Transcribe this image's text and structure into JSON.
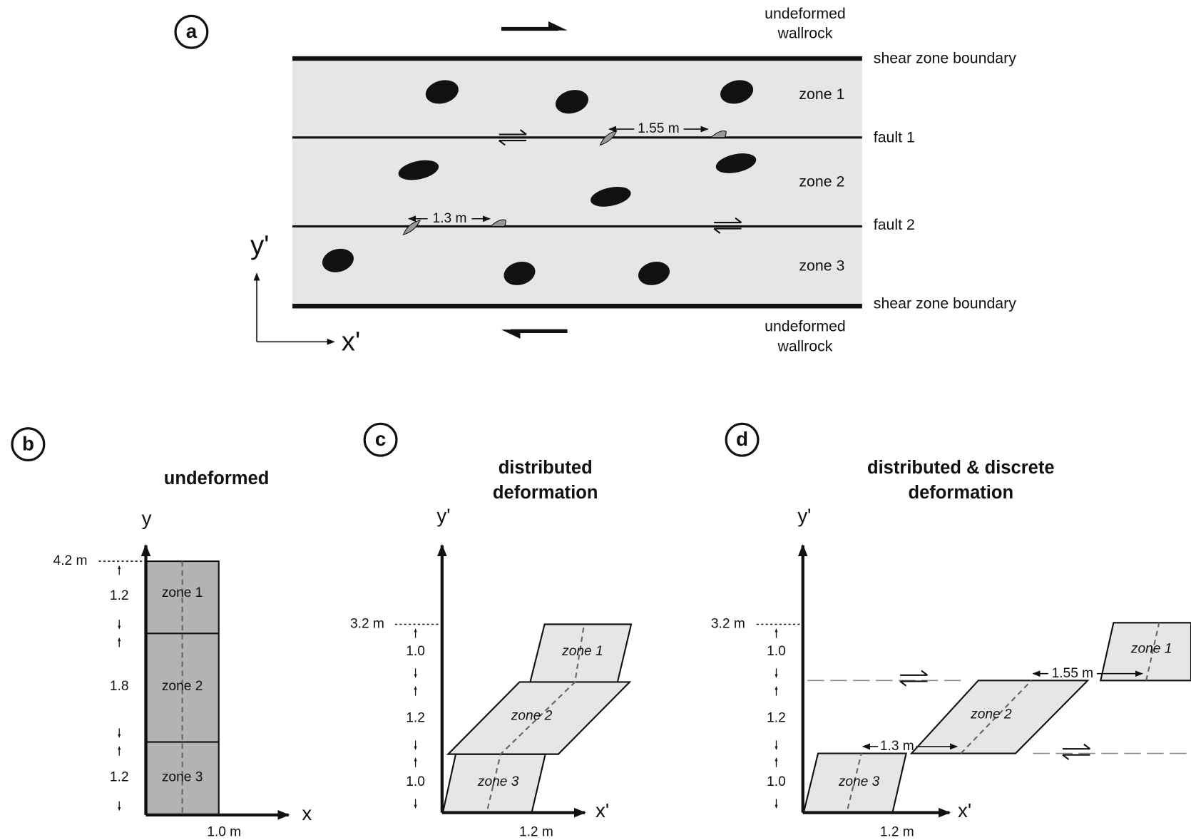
{
  "panel_a": {
    "label": "a",
    "wallrock_top": [
      "undeformed",
      "wallrock"
    ],
    "boundary_top": "shear zone boundary",
    "zones": [
      "zone 1",
      "zone 2",
      "zone 3"
    ],
    "faults": [
      "fault 1",
      "fault 2"
    ],
    "offsets": [
      "1.55 m",
      "1.3 m"
    ],
    "axis_y": "y'",
    "axis_x": "x'",
    "boundary_bottom": "shear zone boundary",
    "wallrock_bottom": [
      "undeformed",
      "wallrock"
    ]
  },
  "panel_b": {
    "label": "b",
    "title": [
      "undeformed"
    ],
    "axis_y": "y",
    "axis_x": "x",
    "height": "4.2 m",
    "thicknesses": [
      "1.2",
      "1.8",
      "1.2"
    ],
    "zones": [
      "zone 1",
      "zone 2",
      "zone 3"
    ],
    "width": "1.0 m"
  },
  "panel_c": {
    "label": "c",
    "title": [
      "distributed",
      "deformation"
    ],
    "axis_y": "y'",
    "axis_x": "x'",
    "height": "3.2 m",
    "thicknesses": [
      "1.0",
      "1.2",
      "1.0"
    ],
    "zones": [
      "zone 1",
      "zone 2",
      "zone 3"
    ],
    "width": "1.2 m"
  },
  "panel_d": {
    "label": "d",
    "title": [
      "distributed & discrete",
      "deformation"
    ],
    "axis_y": "y'",
    "axis_x": "x'",
    "height": "3.2 m",
    "thicknesses": [
      "1.0",
      "1.2",
      "1.0"
    ],
    "zones": [
      "zone 1",
      "zone 2",
      "zone 3"
    ],
    "offsets": [
      "1.55 m",
      "1.3 m"
    ],
    "width": "1.2 m"
  }
}
